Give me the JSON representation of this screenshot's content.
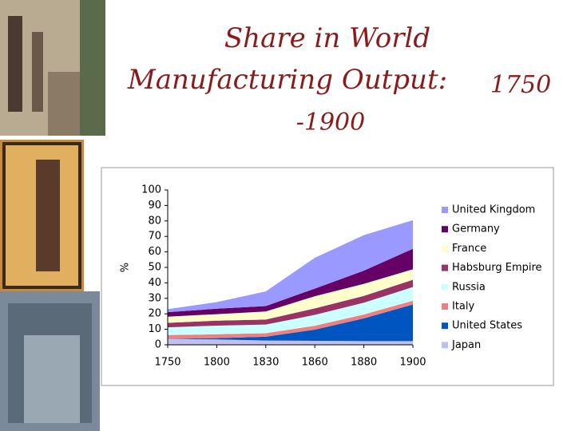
{
  "chart_data": {
    "type": "stacked_area",
    "title": [
      "Share in World",
      "Manufacturing Output:",
      "1750",
      "-1900"
    ],
    "y_label": "%",
    "categories": [
      "1750",
      "1800",
      "1830",
      "1860",
      "1880",
      "1900"
    ],
    "series": [
      {
        "name": "United Kingdom",
        "color": "#9999ff",
        "values": [
          1.9,
          4.3,
          9.5,
          19.9,
          22.9,
          18.5
        ]
      },
      {
        "name": "Germany",
        "color": "#660066",
        "values": [
          2.9,
          3.5,
          3.5,
          4.9,
          8.5,
          13.2
        ]
      },
      {
        "name": "France",
        "color": "#ffffcc",
        "values": [
          4.0,
          4.2,
          5.2,
          7.9,
          7.8,
          6.8
        ]
      },
      {
        "name": "Habsburg Empire",
        "color": "#993366",
        "values": [
          2.9,
          3.2,
          3.2,
          4.2,
          4.4,
          4.7
        ]
      },
      {
        "name": "Russia",
        "color": "#ccffff",
        "values": [
          5.0,
          5.6,
          5.6,
          7.0,
          7.6,
          8.8
        ]
      },
      {
        "name": "Italy",
        "color": "#f08080",
        "values": [
          2.4,
          2.5,
          2.3,
          2.5,
          2.5,
          2.5
        ]
      },
      {
        "name": "United States",
        "color": "#0055c0",
        "values": [
          0.1,
          0.8,
          2.4,
          7.2,
          14.7,
          23.6
        ]
      },
      {
        "name": "Japan",
        "color": "#c0c0f0",
        "values": [
          3.8,
          3.5,
          2.8,
          2.6,
          2.4,
          2.4
        ]
      }
    ],
    "ylim": [
      0,
      100
    ],
    "yticks": [
      0,
      10,
      20,
      30,
      40,
      50,
      60,
      70,
      80,
      90,
      100
    ]
  }
}
